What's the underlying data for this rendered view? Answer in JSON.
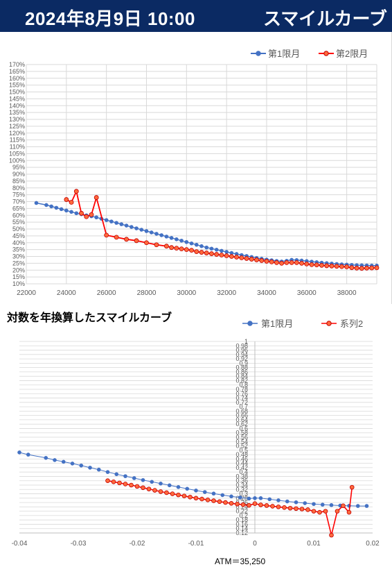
{
  "header": {
    "date": "2024年8月9日 10:00",
    "title": "スマイルカーブ"
  },
  "chart_data": [
    {
      "type": "line",
      "title": "",
      "xlim": [
        22000,
        39500
      ],
      "ylim": [
        10,
        170
      ],
      "x_ticks": [
        "22000",
        "24000",
        "26000",
        "28000",
        "30000",
        "32000",
        "34000",
        "36000",
        "38000"
      ],
      "y_ticks": [
        "10%",
        "15%",
        "20%",
        "25%",
        "30%",
        "35%",
        "40%",
        "45%",
        "50%",
        "55%",
        "60%",
        "65%",
        "70%",
        "75%",
        "80%",
        "85%",
        "90%",
        "95%",
        "100%",
        "105%",
        "110%",
        "115%",
        "120%",
        "125%",
        "130%",
        "135%",
        "140%",
        "145%",
        "150%",
        "155%",
        "160%",
        "165%",
        "170%"
      ],
      "legend_position": "top-right",
      "series": [
        {
          "name": "第1限月",
          "color": "#4472c4",
          "x": [
            22500,
            23000,
            23250,
            23500,
            23750,
            24000,
            24250,
            24500,
            24750,
            25000,
            25250,
            25500,
            25750,
            26000,
            26250,
            26500,
            26750,
            27000,
            27250,
            27500,
            27750,
            28000,
            28250,
            28500,
            28750,
            29000,
            29250,
            29500,
            29750,
            30000,
            30250,
            30500,
            30750,
            31000,
            31250,
            31500,
            31750,
            32000,
            32250,
            32500,
            32750,
            33000,
            33250,
            33500,
            33750,
            34000,
            34250,
            34500,
            34750,
            35000,
            35250,
            35500,
            35750,
            36000,
            36250,
            36500,
            36750,
            37000,
            37250,
            37500,
            37750,
            38000,
            38250,
            38500,
            38750,
            39000,
            39250,
            39500
          ],
          "y": [
            69,
            67.5,
            66.5,
            65.5,
            64.5,
            63.5,
            62.5,
            61.5,
            60.8,
            60,
            59.3,
            58.5,
            57.5,
            56.5,
            55.5,
            54.5,
            53.5,
            52.5,
            51.5,
            50.5,
            49.5,
            48.5,
            47.5,
            46.5,
            45.5,
            44.5,
            43.5,
            42.5,
            41.5,
            40.5,
            39.5,
            38.5,
            37.5,
            36.5,
            35.7,
            34.9,
            34.1,
            33.3,
            32.5,
            31.8,
            31,
            30.3,
            29.6,
            28.9,
            28.3,
            27.7,
            27.2,
            26.7,
            26.3,
            26.8,
            27.5,
            27.3,
            27,
            26.6,
            26.2,
            25.8,
            25.4,
            25.1,
            24.8,
            24.5,
            24.2,
            24,
            23.8,
            23.6,
            23.5,
            23.4,
            23.3,
            23.3
          ]
        },
        {
          "name": "第2限月",
          "color": "#ff0000",
          "x": [
            24000,
            24250,
            24500,
            24750,
            25000,
            25250,
            25500,
            26000,
            26500,
            27000,
            27500,
            28000,
            28500,
            29000,
            29250,
            29500,
            29750,
            30000,
            30250,
            30500,
            30750,
            31000,
            31250,
            31500,
            31750,
            32000,
            32250,
            32500,
            32750,
            33000,
            33250,
            33500,
            33750,
            34000,
            34250,
            34500,
            34750,
            35000,
            35250,
            35500,
            35750,
            36000,
            36250,
            36500,
            36750,
            37000,
            37250,
            37500,
            37750,
            38000,
            38250,
            38500,
            38750,
            39000,
            39250,
            39500
          ],
          "y": [
            71.5,
            69.5,
            77.5,
            61.5,
            59,
            60.5,
            73,
            45.5,
            44,
            42.5,
            41.5,
            40,
            38.5,
            37.5,
            36.5,
            36,
            35.5,
            35,
            34.5,
            33.5,
            33,
            32.5,
            32,
            31.5,
            31,
            30.5,
            30,
            29.5,
            29,
            28.5,
            28,
            27.5,
            27,
            26.5,
            26,
            25.5,
            25,
            25.5,
            25.5,
            25.5,
            25,
            24.5,
            24,
            23.8,
            23.5,
            23.2,
            23,
            22.8,
            22.6,
            22.4,
            21.8,
            21.5,
            21.3,
            21.5,
            21.6,
            21.7
          ]
        }
      ]
    },
    {
      "type": "line",
      "title": "対数を年換算したスマイルカーブ",
      "xlim": [
        -0.04,
        0.02
      ],
      "ylim": [
        0.12,
        1
      ],
      "x_ticks": [
        "-0.04",
        "-0.03",
        "-0.02",
        "-0.01",
        "0",
        "0.01",
        "0.02"
      ],
      "y_ticks": [
        "0.12",
        "0.14",
        "0.16",
        "0.18",
        "0.2",
        "0.22",
        "0.24",
        "0.26",
        "0.28",
        "0.3",
        "0.32",
        "0.34",
        "0.36",
        "0.38",
        "0.4",
        "0.42",
        "0.44",
        "0.46",
        "0.48",
        "0.5",
        "0.52",
        "0.54",
        "0.56",
        "0.58",
        "0.6",
        "0.62",
        "0.64",
        "0.66",
        "0.68",
        "0.7",
        "0.72",
        "0.74",
        "0.76",
        "0.78",
        "0.8",
        "0.82",
        "0.84",
        "0.86",
        "0.88",
        "0.9",
        "0.92",
        "0.94",
        "0.96",
        "0.98",
        "1"
      ],
      "legend_position": "top",
      "note": "ATM＝35,250",
      "series": [
        {
          "name": "第1限月",
          "color": "#4472c4",
          "x": [
            -0.04,
            -0.0385,
            -0.0355,
            -0.034,
            -0.0325,
            -0.031,
            -0.0295,
            -0.028,
            -0.0265,
            -0.025,
            -0.0235,
            -0.022,
            -0.0205,
            -0.019,
            -0.0175,
            -0.016,
            -0.0145,
            -0.013,
            -0.0115,
            -0.01,
            -0.0085,
            -0.007,
            -0.0055,
            -0.004,
            -0.0025,
            -0.001,
            0,
            0.001,
            0.0025,
            0.004,
            0.0055,
            0.007,
            0.0085,
            0.01,
            0.0115,
            0.013,
            0.0145,
            0.016,
            0.0175,
            0.019
          ],
          "y": [
            0.49,
            0.48,
            0.465,
            0.455,
            0.447,
            0.439,
            0.43,
            0.42,
            0.411,
            0.4,
            0.39,
            0.381,
            0.372,
            0.363,
            0.355,
            0.347,
            0.339,
            0.331,
            0.323,
            0.315,
            0.308,
            0.301,
            0.294,
            0.288,
            0.283,
            0.278,
            0.28,
            0.28,
            0.275,
            0.27,
            0.265,
            0.261,
            0.257,
            0.253,
            0.25,
            0.248,
            0.246,
            0.245,
            0.244,
            0.244
          ]
        },
        {
          "name": "系列2",
          "color": "#ff0000",
          "x": [
            -0.025,
            -0.024,
            -0.023,
            -0.022,
            -0.021,
            -0.02,
            -0.019,
            -0.018,
            -0.017,
            -0.016,
            -0.015,
            -0.014,
            -0.013,
            -0.012,
            -0.011,
            -0.01,
            -0.009,
            -0.008,
            -0.007,
            -0.006,
            -0.005,
            -0.004,
            -0.003,
            -0.002,
            -0.001,
            0,
            0.001,
            0.002,
            0.003,
            0.004,
            0.005,
            0.006,
            0.007,
            0.008,
            0.009,
            0.01,
            0.011,
            0.012,
            0.013,
            0.014,
            0.015,
            0.016,
            0.0165
          ],
          "y": [
            0.36,
            0.355,
            0.35,
            0.345,
            0.34,
            0.334,
            0.328,
            0.322,
            0.316,
            0.31,
            0.305,
            0.3,
            0.295,
            0.29,
            0.285,
            0.28,
            0.276,
            0.272,
            0.268,
            0.264,
            0.26,
            0.256,
            0.253,
            0.25,
            0.247,
            0.255,
            0.249,
            0.246,
            0.243,
            0.24,
            0.237,
            0.234,
            0.232,
            0.23,
            0.227,
            0.22,
            0.215,
            0.22,
            0.11,
            0.22,
            0.245,
            0.215,
            0.33
          ]
        }
      ]
    }
  ]
}
